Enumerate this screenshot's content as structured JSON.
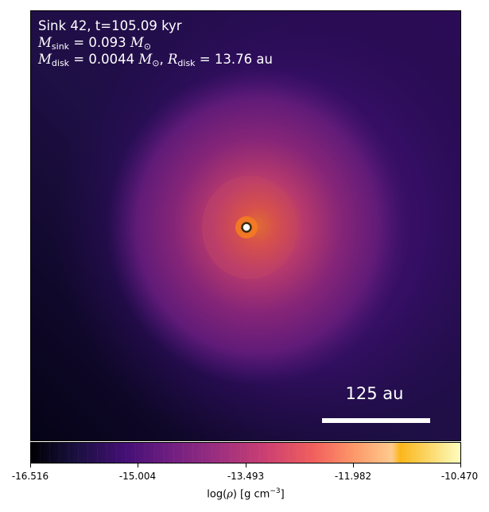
{
  "annotation": {
    "line1": "Sink 42, t=105.09 kyr",
    "msink_symbol": "M",
    "msink_sub": "sink",
    "msink_value": " = 0.093 ",
    "msun_symbol": "M",
    "msun_sub": "⊙",
    "mdisk_symbol": "M",
    "mdisk_sub": "disk",
    "mdisk_value": " = 0.0044 ",
    "rdisk_sep": ", ",
    "rdisk_symbol": "R",
    "rdisk_sub": "disk",
    "rdisk_value": " = 13.76 au"
  },
  "scale_bar": {
    "label": "125 au"
  },
  "colorbar": {
    "colormap": "inferno",
    "ticks": [
      "-16.516",
      "-15.004",
      "-13.493",
      "-11.982",
      "-10.470"
    ],
    "label_prefix": "log(",
    "label_rho": "ρ",
    "label_middle": ") [g cm",
    "label_exp": "−3",
    "label_suffix": "]"
  },
  "sink_marker": {
    "fill": "#ffffff",
    "stroke": "#3a2a10"
  }
}
